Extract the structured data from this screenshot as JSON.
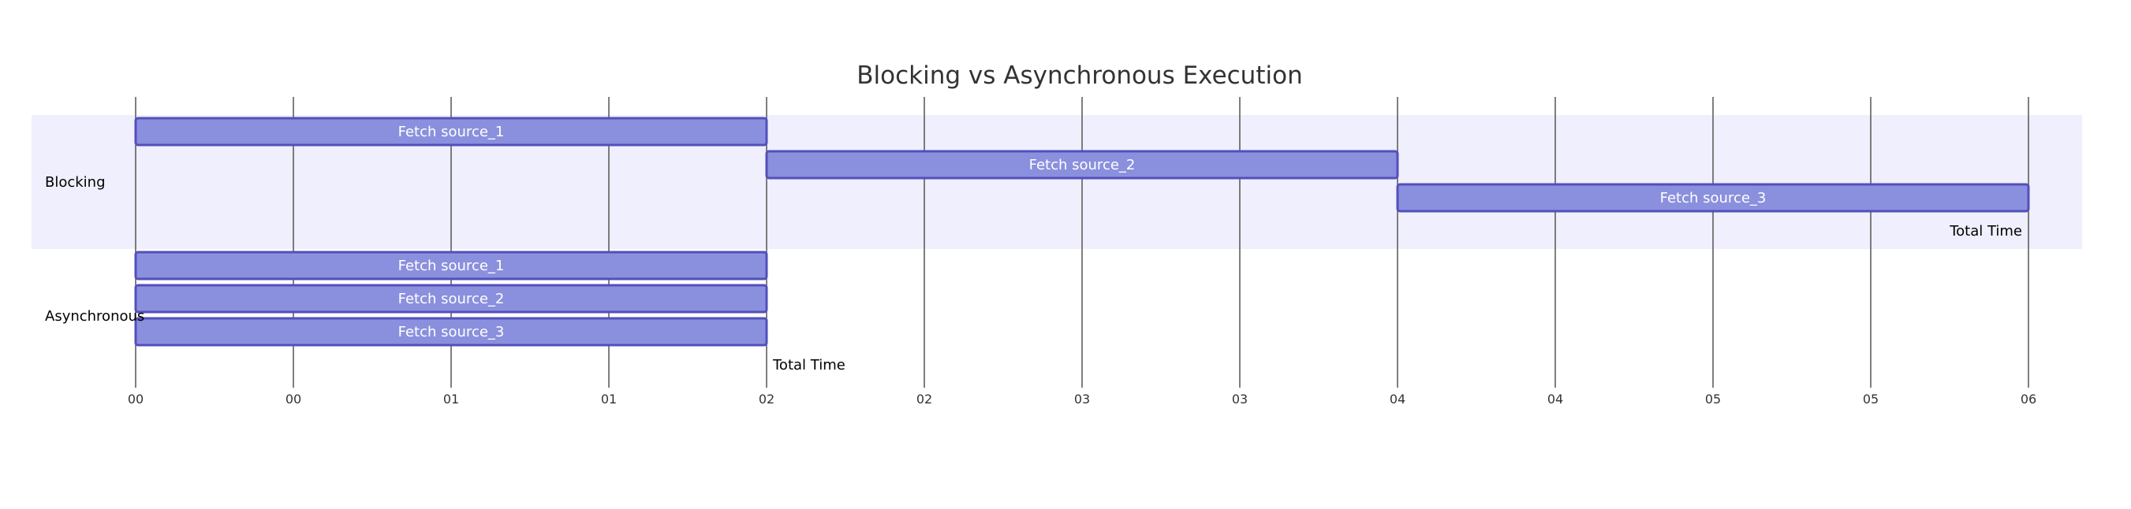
{
  "chart_data": {
    "type": "gantt",
    "title": "Blocking vs Asynchronous Execution",
    "x_ticks": [
      "00",
      "00",
      "01",
      "01",
      "02",
      "02",
      "03",
      "03",
      "04",
      "04",
      "05",
      "05",
      "06"
    ],
    "x_range": [
      0,
      6
    ],
    "sections": [
      {
        "name": "Blocking",
        "tasks": [
          {
            "name": "Fetch source_1",
            "start": 0,
            "end": 2
          },
          {
            "name": "Fetch source_2",
            "start": 2,
            "end": 4
          },
          {
            "name": "Fetch source_3",
            "start": 4,
            "end": 6
          }
        ],
        "milestone": {
          "name": "Total Time",
          "at": 6
        }
      },
      {
        "name": "Asynchronous",
        "tasks": [
          {
            "name": "Fetch source_1",
            "start": 0,
            "end": 2
          },
          {
            "name": "Fetch source_2",
            "start": 0,
            "end": 2
          },
          {
            "name": "Fetch source_3",
            "start": 0,
            "end": 2
          }
        ],
        "milestone": {
          "name": "Total Time",
          "at": 2
        }
      }
    ],
    "colors": {
      "task_fill": "#8a90dd",
      "task_stroke": "#534fbc",
      "section_band": "#efeffd",
      "grid": "#555555"
    },
    "grid": true
  }
}
